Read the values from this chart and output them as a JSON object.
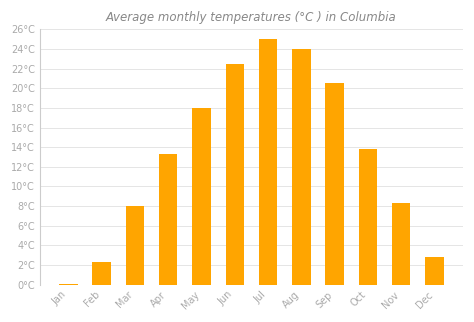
{
  "months": [
    "Jan",
    "Feb",
    "Mar",
    "Apr",
    "May",
    "Jun",
    "Jul",
    "Aug",
    "Sep",
    "Oct",
    "Nov",
    "Dec"
  ],
  "values": [
    0.1,
    2.3,
    8.0,
    13.3,
    18.0,
    22.5,
    25.0,
    24.0,
    20.5,
    13.8,
    8.3,
    2.8
  ],
  "bar_color": "#FFA500",
  "title": "Average monthly temperatures (°C ) in Columbia",
  "title_fontsize": 8.5,
  "title_color": "#888888",
  "ylim": [
    0,
    26
  ],
  "ytick_step": 2,
  "background_color": "#ffffff",
  "plot_bg_color": "#ffffff",
  "grid_color": "#e0e0e0",
  "tick_label_color": "#aaaaaa",
  "tick_label_fontsize": 7,
  "bar_width": 0.55,
  "left_spine_color": "#cccccc"
}
